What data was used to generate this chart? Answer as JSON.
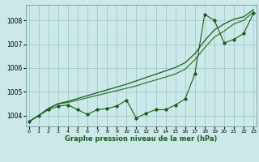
{
  "background_color": "#cce8e8",
  "grid_color": "#99cccc",
  "line_color_dark": "#1a5c1a",
  "line_color_mid": "#2d7a2d",
  "xlabel": "Graphe pression niveau de la mer (hPa)",
  "yticks": [
    1004,
    1005,
    1006,
    1007,
    1008
  ],
  "xticks": [
    0,
    1,
    2,
    3,
    4,
    5,
    6,
    7,
    8,
    9,
    10,
    11,
    12,
    13,
    14,
    15,
    16,
    17,
    18,
    19,
    20,
    21,
    22,
    23
  ],
  "xlim": [
    -0.3,
    23.3
  ],
  "ylim": [
    1003.55,
    1008.65
  ],
  "series1_x": [
    0,
    1,
    2,
    3,
    4,
    5,
    6,
    7,
    8,
    9,
    10,
    11,
    12,
    13,
    14,
    15,
    16,
    17,
    18,
    19,
    20,
    21,
    22,
    23
  ],
  "series1_y": [
    1003.75,
    1004.0,
    1004.25,
    1004.4,
    1004.45,
    1004.25,
    1004.05,
    1004.25,
    1004.3,
    1004.4,
    1004.65,
    1003.9,
    1004.1,
    1004.25,
    1004.25,
    1004.45,
    1004.7,
    1005.75,
    1008.25,
    1008.0,
    1007.05,
    1007.2,
    1007.45,
    1008.3
  ],
  "series2_x": [
    0,
    1,
    2,
    3,
    4,
    5,
    6,
    7,
    8,
    9,
    10,
    11,
    12,
    13,
    14,
    15,
    16,
    17,
    18,
    19,
    20,
    21,
    22,
    23
  ],
  "series2_y": [
    1003.75,
    1004.0,
    1004.3,
    1004.5,
    1004.55,
    1004.65,
    1004.75,
    1004.85,
    1004.95,
    1005.05,
    1005.15,
    1005.25,
    1005.38,
    1005.5,
    1005.62,
    1005.75,
    1005.95,
    1006.35,
    1006.85,
    1007.3,
    1007.55,
    1007.85,
    1008.0,
    1008.35
  ],
  "series3_x": [
    0,
    1,
    2,
    3,
    4,
    5,
    6,
    7,
    8,
    9,
    10,
    11,
    12,
    13,
    14,
    15,
    16,
    17,
    18,
    19,
    20,
    21,
    22,
    23
  ],
  "series3_y": [
    1003.75,
    1004.0,
    1004.3,
    1004.5,
    1004.6,
    1004.72,
    1004.84,
    1004.96,
    1005.08,
    1005.2,
    1005.32,
    1005.46,
    1005.6,
    1005.74,
    1005.88,
    1006.02,
    1006.22,
    1006.6,
    1007.15,
    1007.6,
    1007.85,
    1008.05,
    1008.15,
    1008.45
  ]
}
